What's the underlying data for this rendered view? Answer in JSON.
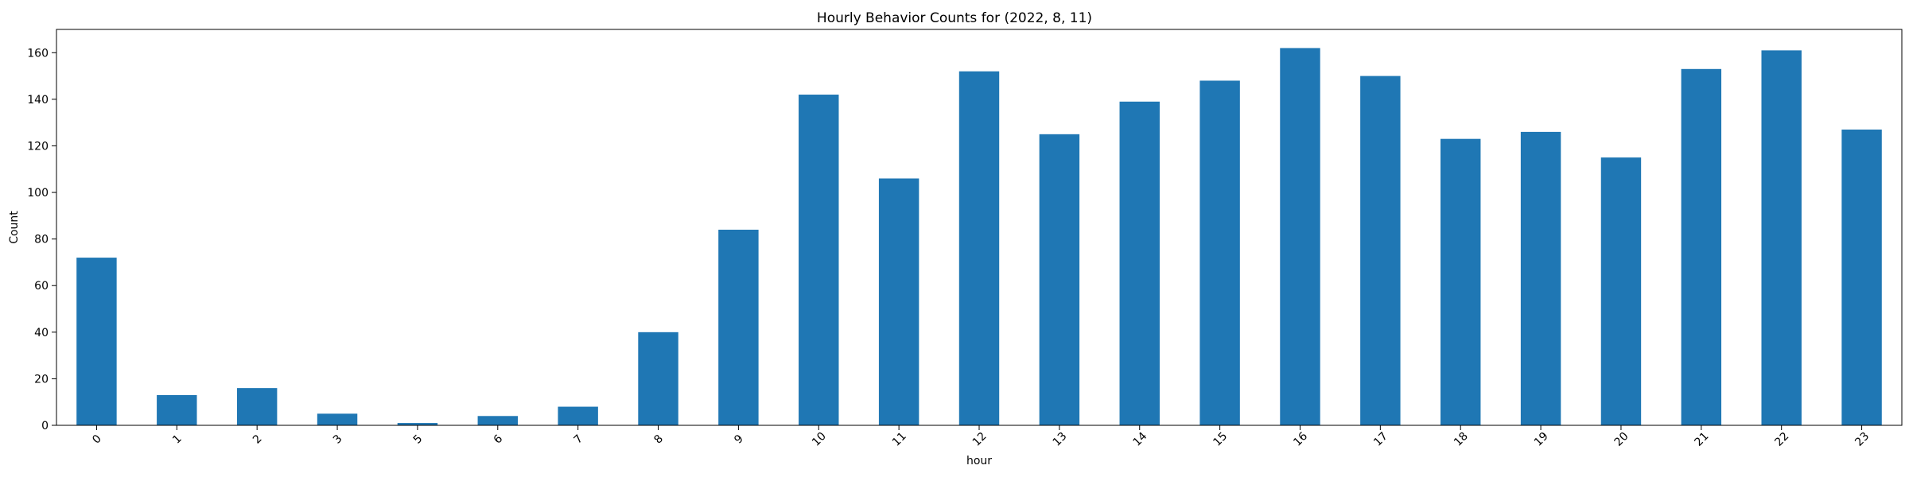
{
  "chart_data": {
    "type": "bar",
    "title": "Hourly Behavior Counts for (2022, 8, 11)",
    "xlabel": "hour",
    "ylabel": "Count",
    "categories": [
      "0",
      "1",
      "2",
      "3",
      "5",
      "6",
      "7",
      "8",
      "9",
      "10",
      "11",
      "12",
      "13",
      "14",
      "15",
      "16",
      "17",
      "18",
      "19",
      "20",
      "21",
      "22",
      "23"
    ],
    "values": [
      72,
      13,
      16,
      5,
      1,
      4,
      8,
      40,
      84,
      142,
      106,
      152,
      125,
      139,
      148,
      162,
      150,
      123,
      126,
      115,
      153,
      161,
      127
    ],
    "ylim": [
      0,
      170
    ],
    "yticks": [
      0,
      20,
      40,
      60,
      80,
      100,
      120,
      140,
      160
    ],
    "grid": false,
    "legend": "none",
    "bar_color": "#1f77b4",
    "tick_rotation": -45
  }
}
